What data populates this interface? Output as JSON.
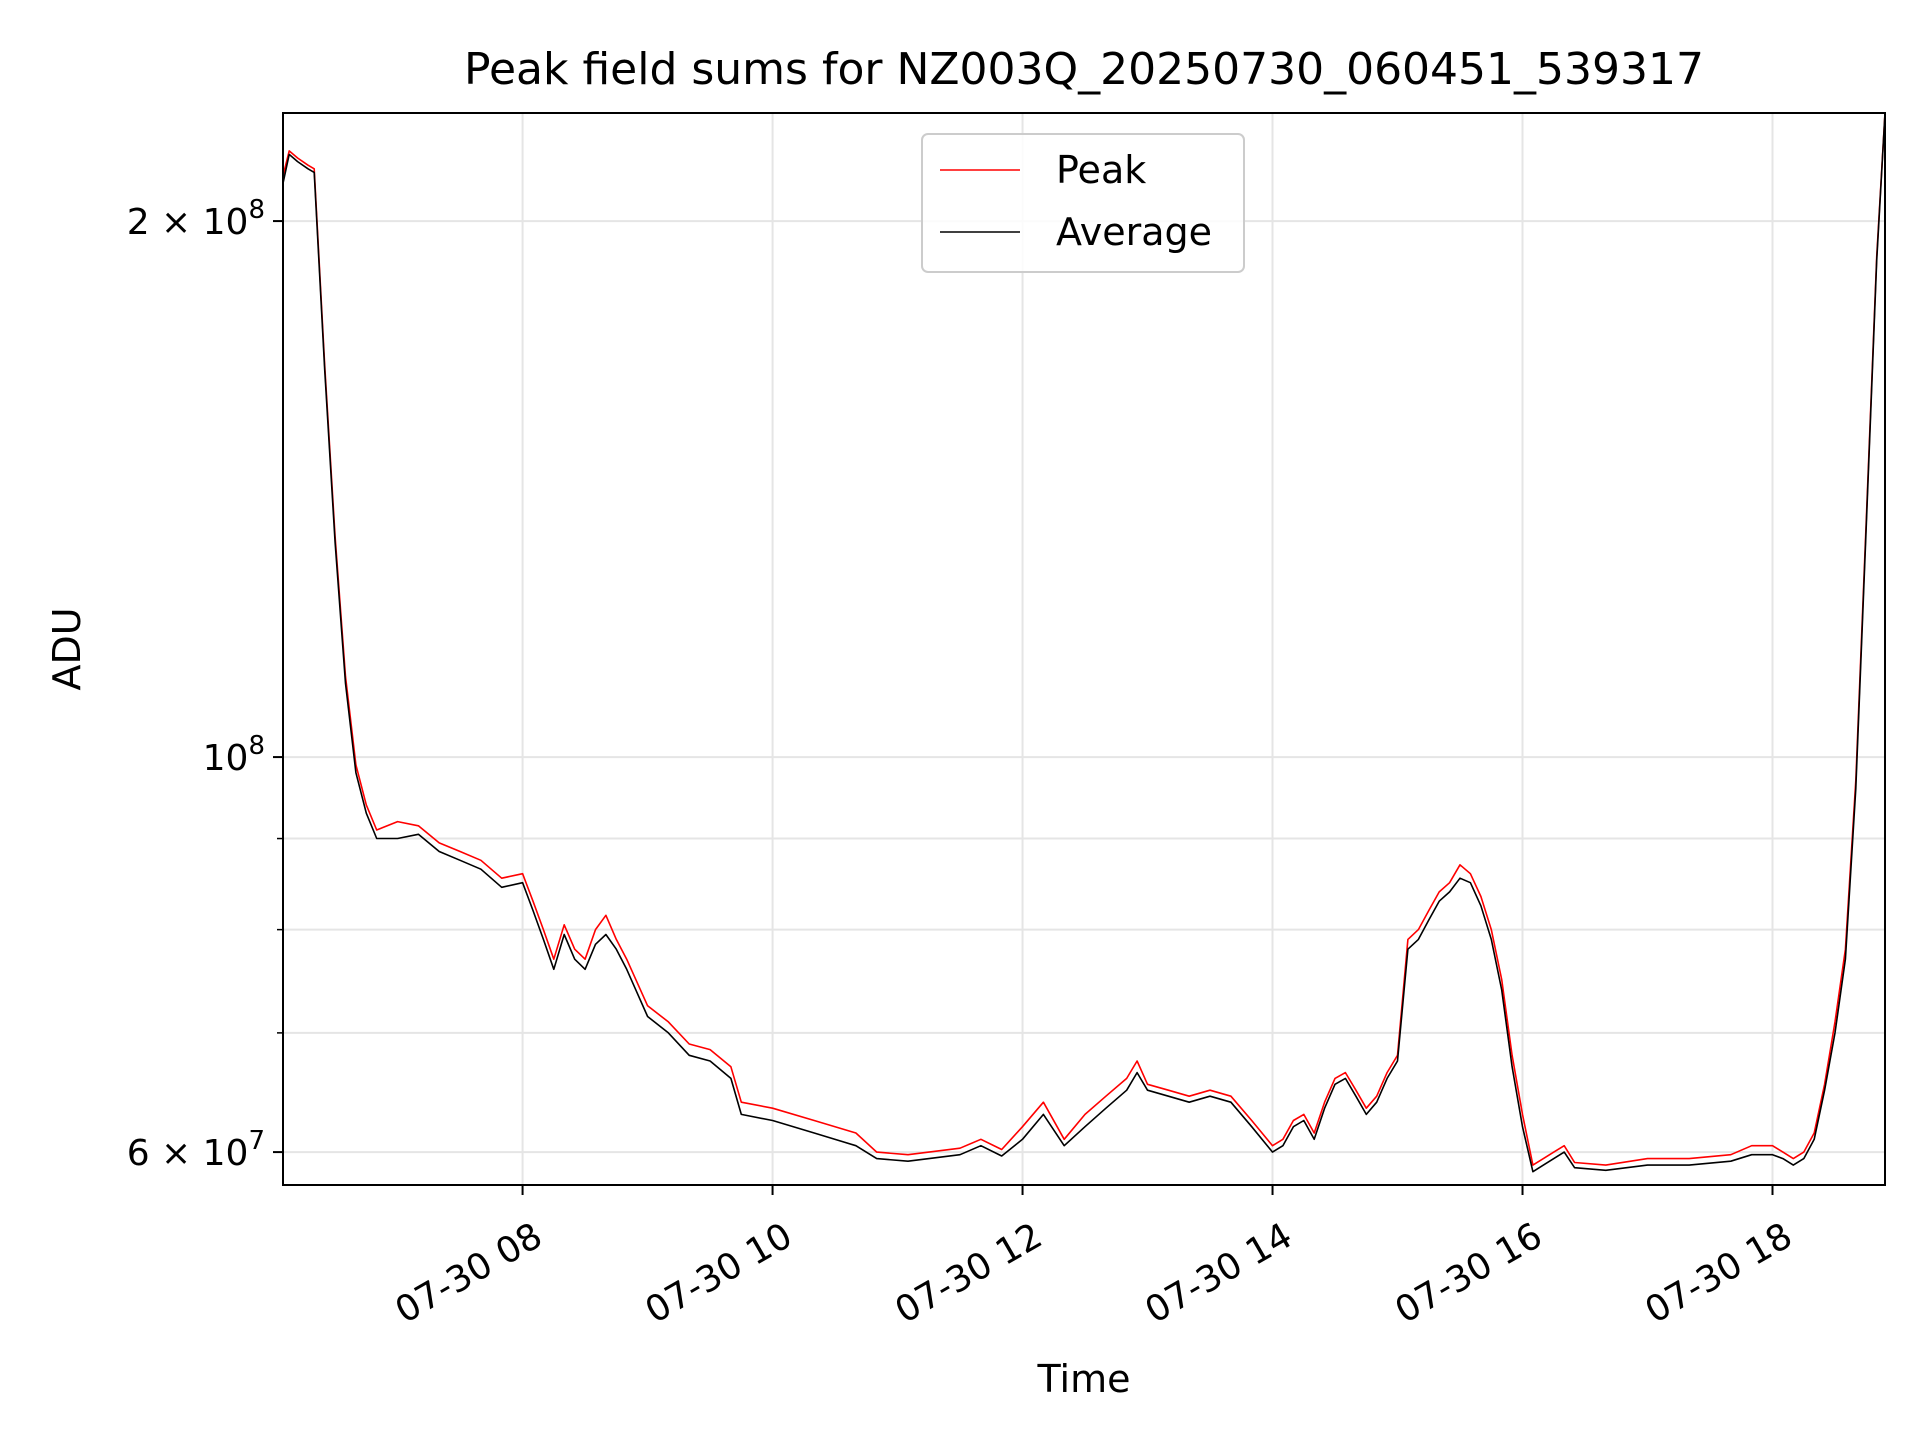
{
  "chart_data": {
    "type": "line",
    "title": "Peak field sums for NZ003Q_20250730_060451_539317",
    "xlabel": "Time",
    "ylabel": "ADU",
    "yscale": "log",
    "ylim": [
      57500000,
      230000000
    ],
    "xlim": [
      "07-30 06:05",
      "07-30 18:54"
    ],
    "grid": true,
    "legend": {
      "position": "upper center",
      "entries": [
        "Peak",
        "Average"
      ]
    },
    "colors": {
      "Peak": "#ff0000",
      "Average": "#000000"
    },
    "x_ticks": [
      {
        "time": "07-30 08:00",
        "label": "07-30 08"
      },
      {
        "time": "07-30 10:00",
        "label": "07-30 10"
      },
      {
        "time": "07-30 12:00",
        "label": "07-30 12"
      },
      {
        "time": "07-30 14:00",
        "label": "07-30 14"
      },
      {
        "time": "07-30 16:00",
        "label": "07-30 16"
      },
      {
        "time": "07-30 18:00",
        "label": "07-30 18"
      }
    ],
    "y_ticks_major": [
      {
        "value": 60000000,
        "base": "6 × 10",
        "exp": "7"
      },
      {
        "value": 100000000,
        "base": "10",
        "exp": "8"
      },
      {
        "value": 200000000,
        "base": "2 × 10",
        "exp": "8"
      }
    ],
    "y_ticks_minor": [
      70000000,
      80000000,
      90000000
    ],
    "series": [
      {
        "name": "Average",
        "points": [
          [
            "07-30 06:05",
            210000000.0
          ],
          [
            "07-30 06:08",
            218000000.0
          ],
          [
            "07-30 06:12",
            216000000.0
          ],
          [
            "07-30 06:17",
            214000000.0
          ],
          [
            "07-30 06:20",
            213000000.0
          ],
          [
            "07-30 06:25",
            165000000.0
          ],
          [
            "07-30 06:30",
            132000000.0
          ],
          [
            "07-30 06:35",
            110000000.0
          ],
          [
            "07-30 06:40",
            98000000.0
          ],
          [
            "07-30 06:45",
            93000000.0
          ],
          [
            "07-30 06:50",
            90000000.0
          ],
          [
            "07-30 07:00",
            90000000.0
          ],
          [
            "07-30 07:10",
            90500000.0
          ],
          [
            "07-30 07:20",
            88500000.0
          ],
          [
            "07-30 07:30",
            87500000.0
          ],
          [
            "07-30 07:40",
            86500000.0
          ],
          [
            "07-30 07:50",
            84500000.0
          ],
          [
            "07-30 08:00",
            85000000.0
          ],
          [
            "07-30 08:05",
            82000000.0
          ],
          [
            "07-30 08:10",
            79000000.0
          ],
          [
            "07-30 08:15",
            76000000.0
          ],
          [
            "07-30 08:20",
            79500000.0
          ],
          [
            "07-30 08:25",
            77000000.0
          ],
          [
            "07-30 08:30",
            76000000.0
          ],
          [
            "07-30 08:35",
            78500000.0
          ],
          [
            "07-30 08:40",
            79500000.0
          ],
          [
            "07-30 08:45",
            78000000.0
          ],
          [
            "07-30 08:50",
            76000000.0
          ],
          [
            "07-30 09:00",
            71500000.0
          ],
          [
            "07-30 09:10",
            70000000.0
          ],
          [
            "07-30 09:20",
            68000000.0
          ],
          [
            "07-30 09:30",
            67500000.0
          ],
          [
            "07-30 09:40",
            66000000.0
          ],
          [
            "07-30 09:45",
            63000000.0
          ],
          [
            "07-30 10:00",
            62500000.0
          ],
          [
            "07-30 10:20",
            61500000.0
          ],
          [
            "07-30 10:40",
            60500000.0
          ],
          [
            "07-30 10:50",
            59500000.0
          ],
          [
            "07-30 11:05",
            59300000.0
          ],
          [
            "07-30 11:30",
            59800000.0
          ],
          [
            "07-30 11:40",
            60500000.0
          ],
          [
            "07-30 11:50",
            59700000.0
          ],
          [
            "07-30 12:00",
            61000000.0
          ],
          [
            "07-30 12:10",
            63000000.0
          ],
          [
            "07-30 12:20",
            60500000.0
          ],
          [
            "07-30 12:30",
            62000000.0
          ],
          [
            "07-30 12:40",
            63500000.0
          ],
          [
            "07-30 12:50",
            65000000.0
          ],
          [
            "07-30 12:55",
            66500000.0
          ],
          [
            "07-30 13:00",
            65000000.0
          ],
          [
            "07-30 13:10",
            64500000.0
          ],
          [
            "07-30 13:20",
            64000000.0
          ],
          [
            "07-30 13:30",
            64500000.0
          ],
          [
            "07-30 13:40",
            64000000.0
          ],
          [
            "07-30 13:50",
            62000000.0
          ],
          [
            "07-30 14:00",
            60000000.0
          ],
          [
            "07-30 14:05",
            60500000.0
          ],
          [
            "07-30 14:10",
            62000000.0
          ],
          [
            "07-30 14:15",
            62500000.0
          ],
          [
            "07-30 14:20",
            61000000.0
          ],
          [
            "07-30 14:25",
            63500000.0
          ],
          [
            "07-30 14:30",
            65500000.0
          ],
          [
            "07-30 14:35",
            66000000.0
          ],
          [
            "07-30 14:40",
            64500000.0
          ],
          [
            "07-30 14:45",
            63000000.0
          ],
          [
            "07-30 14:50",
            64000000.0
          ],
          [
            "07-30 14:55",
            66000000.0
          ],
          [
            "07-30 15:00",
            67500000.0
          ],
          [
            "07-30 15:05",
            78000000.0
          ],
          [
            "07-30 15:10",
            79000000.0
          ],
          [
            "07-30 15:15",
            81000000.0
          ],
          [
            "07-30 15:20",
            83000000.0
          ],
          [
            "07-30 15:25",
            84000000.0
          ],
          [
            "07-30 15:30",
            85500000.0
          ],
          [
            "07-30 15:35",
            85000000.0
          ],
          [
            "07-30 15:40",
            82500000.0
          ],
          [
            "07-30 15:45",
            79000000.0
          ],
          [
            "07-30 15:50",
            74000000.0
          ],
          [
            "07-30 15:55",
            67000000.0
          ],
          [
            "07-30 16:00",
            62000000.0
          ],
          [
            "07-30 16:05",
            58500000.0
          ],
          [
            "07-30 16:10",
            59000000.0
          ],
          [
            "07-30 16:15",
            59500000.0
          ],
          [
            "07-30 16:20",
            60000000.0
          ],
          [
            "07-30 16:25",
            58800000.0
          ],
          [
            "07-30 16:40",
            58600000.0
          ],
          [
            "07-30 17:00",
            59000000.0
          ],
          [
            "07-30 17:20",
            59000000.0
          ],
          [
            "07-30 17:40",
            59300000.0
          ],
          [
            "07-30 17:50",
            59800000.0
          ],
          [
            "07-30 18:00",
            59800000.0
          ],
          [
            "07-30 18:05",
            59500000.0
          ],
          [
            "07-30 18:10",
            59000000.0
          ],
          [
            "07-30 18:15",
            59500000.0
          ],
          [
            "07-30 18:20",
            61000000.0
          ],
          [
            "07-30 18:25",
            65000000.0
          ],
          [
            "07-30 18:30",
            70000000.0
          ],
          [
            "07-30 18:35",
            77000000.0
          ],
          [
            "07-30 18:40",
            96000000.0
          ],
          [
            "07-30 18:45",
            135000000.0
          ],
          [
            "07-30 18:50",
            190000000.0
          ],
          [
            "07-30 18:54",
            230000000.0
          ]
        ]
      },
      {
        "name": "Peak",
        "points": [
          [
            "07-30 06:05",
            212000000.0
          ],
          [
            "07-30 06:08",
            219000000.0
          ],
          [
            "07-30 06:12",
            217000000.0
          ],
          [
            "07-30 06:17",
            215000000.0
          ],
          [
            "07-30 06:20",
            214000000.0
          ],
          [
            "07-30 06:25",
            166000000.0
          ],
          [
            "07-30 06:30",
            133000000.0
          ],
          [
            "07-30 06:35",
            111000000.0
          ],
          [
            "07-30 06:40",
            99000000.0
          ],
          [
            "07-30 06:45",
            94000000.0
          ],
          [
            "07-30 06:50",
            91000000.0
          ],
          [
            "07-30 07:00",
            92000000.0
          ],
          [
            "07-30 07:10",
            91500000.0
          ],
          [
            "07-30 07:20",
            89500000.0
          ],
          [
            "07-30 07:30",
            88500000.0
          ],
          [
            "07-30 07:40",
            87500000.0
          ],
          [
            "07-30 07:50",
            85500000.0
          ],
          [
            "07-30 08:00",
            86000000.0
          ],
          [
            "07-30 08:05",
            83000000.0
          ],
          [
            "07-30 08:10",
            80000000.0
          ],
          [
            "07-30 08:15",
            77000000.0
          ],
          [
            "07-30 08:20",
            80500000.0
          ],
          [
            "07-30 08:25",
            78000000.0
          ],
          [
            "07-30 08:30",
            77000000.0
          ],
          [
            "07-30 08:35",
            80000000.0
          ],
          [
            "07-30 08:40",
            81500000.0
          ],
          [
            "07-30 08:45",
            79000000.0
          ],
          [
            "07-30 08:50",
            77000000.0
          ],
          [
            "07-30 09:00",
            72500000.0
          ],
          [
            "07-30 09:10",
            71000000.0
          ],
          [
            "07-30 09:20",
            69000000.0
          ],
          [
            "07-30 09:30",
            68500000.0
          ],
          [
            "07-30 09:40",
            67000000.0
          ],
          [
            "07-30 09:45",
            64000000.0
          ],
          [
            "07-30 10:00",
            63500000.0
          ],
          [
            "07-30 10:20",
            62500000.0
          ],
          [
            "07-30 10:40",
            61500000.0
          ],
          [
            "07-30 10:50",
            60000000.0
          ],
          [
            "07-30 11:05",
            59800000.0
          ],
          [
            "07-30 11:30",
            60300000.0
          ],
          [
            "07-30 11:40",
            61000000.0
          ],
          [
            "07-30 11:50",
            60200000.0
          ],
          [
            "07-30 12:00",
            62000000.0
          ],
          [
            "07-30 12:10",
            64000000.0
          ],
          [
            "07-30 12:20",
            61000000.0
          ],
          [
            "07-30 12:30",
            63000000.0
          ],
          [
            "07-30 12:40",
            64500000.0
          ],
          [
            "07-30 12:50",
            66000000.0
          ],
          [
            "07-30 12:55",
            67500000.0
          ],
          [
            "07-30 13:00",
            65500000.0
          ],
          [
            "07-30 13:10",
            65000000.0
          ],
          [
            "07-30 13:20",
            64500000.0
          ],
          [
            "07-30 13:30",
            65000000.0
          ],
          [
            "07-30 13:40",
            64500000.0
          ],
          [
            "07-30 13:50",
            62500000.0
          ],
          [
            "07-30 14:00",
            60500000.0
          ],
          [
            "07-30 14:05",
            61000000.0
          ],
          [
            "07-30 14:10",
            62500000.0
          ],
          [
            "07-30 14:15",
            63000000.0
          ],
          [
            "07-30 14:20",
            61500000.0
          ],
          [
            "07-30 14:25",
            64000000.0
          ],
          [
            "07-30 14:30",
            66000000.0
          ],
          [
            "07-30 14:35",
            66500000.0
          ],
          [
            "07-30 14:40",
            65000000.0
          ],
          [
            "07-30 14:45",
            63500000.0
          ],
          [
            "07-30 14:50",
            64500000.0
          ],
          [
            "07-30 14:55",
            66500000.0
          ],
          [
            "07-30 15:00",
            68000000.0
          ],
          [
            "07-30 15:05",
            79000000.0
          ],
          [
            "07-30 15:10",
            80000000.0
          ],
          [
            "07-30 15:15",
            82000000.0
          ],
          [
            "07-30 15:20",
            84000000.0
          ],
          [
            "07-30 15:25",
            85000000.0
          ],
          [
            "07-30 15:30",
            87000000.0
          ],
          [
            "07-30 15:35",
            86000000.0
          ],
          [
            "07-30 15:40",
            83500000.0
          ],
          [
            "07-30 15:45",
            80000000.0
          ],
          [
            "07-30 15:50",
            75000000.0
          ],
          [
            "07-30 15:55",
            68000000.0
          ],
          [
            "07-30 16:00",
            63000000.0
          ],
          [
            "07-30 16:05",
            59000000.0
          ],
          [
            "07-30 16:10",
            59500000.0
          ],
          [
            "07-30 16:15",
            60000000.0
          ],
          [
            "07-30 16:20",
            60500000.0
          ],
          [
            "07-30 16:25",
            59200000.0
          ],
          [
            "07-30 16:40",
            59000000.0
          ],
          [
            "07-30 17:00",
            59500000.0
          ],
          [
            "07-30 17:20",
            59500000.0
          ],
          [
            "07-30 17:40",
            59800000.0
          ],
          [
            "07-30 17:50",
            60500000.0
          ],
          [
            "07-30 18:00",
            60500000.0
          ],
          [
            "07-30 18:05",
            60000000.0
          ],
          [
            "07-30 18:10",
            59500000.0
          ],
          [
            "07-30 18:15",
            60000000.0
          ],
          [
            "07-30 18:20",
            61500000.0
          ],
          [
            "07-30 18:25",
            65500000.0
          ],
          [
            "07-30 18:30",
            71000000.0
          ],
          [
            "07-30 18:35",
            78000000.0
          ],
          [
            "07-30 18:40",
            97000000.0
          ],
          [
            "07-30 18:45",
            136000000.0
          ],
          [
            "07-30 18:50",
            191000000.0
          ],
          [
            "07-30 18:54",
            230000000.0
          ]
        ]
      }
    ]
  }
}
